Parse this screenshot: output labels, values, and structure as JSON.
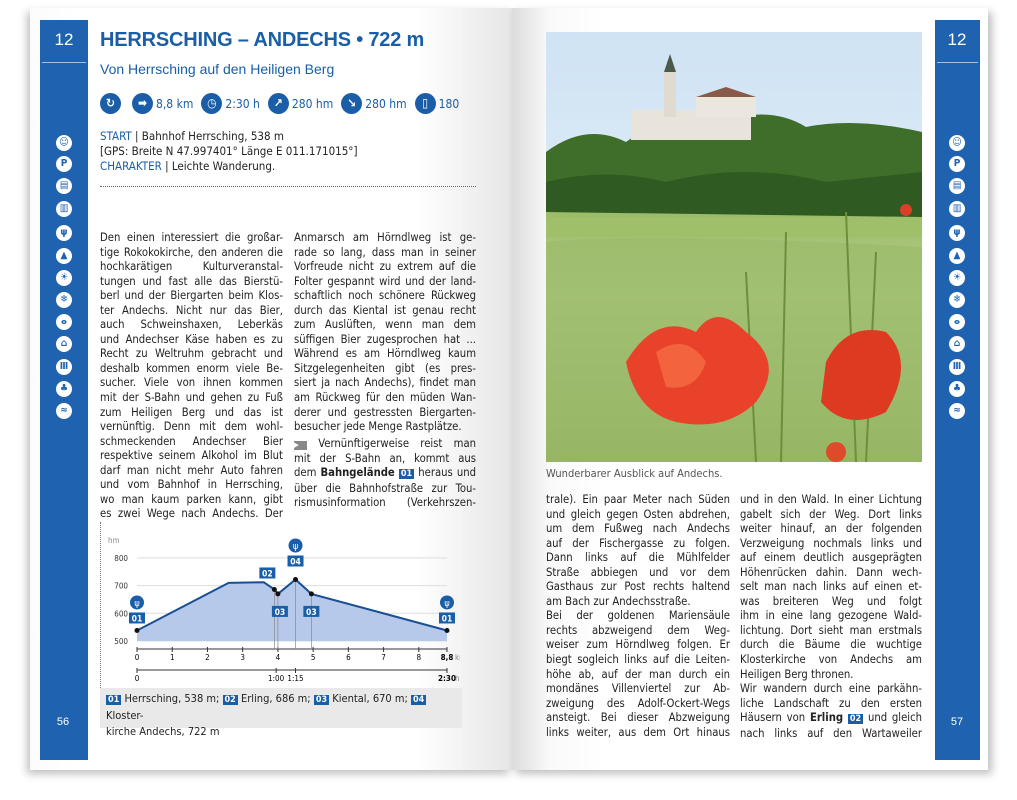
{
  "tour_number": "12",
  "left_page": {
    "page_number": "56",
    "title": "HERRSCHING – ANDECHS • 722 m",
    "subtitle": "Von Herrsching auf den Heiligen Berg",
    "stats": [
      {
        "icon": "loop-icon",
        "glyph": "↻",
        "value": ""
      },
      {
        "icon": "signpost-icon",
        "glyph": "➡",
        "value": "8,8 km"
      },
      {
        "icon": "clock-icon",
        "glyph": "◷",
        "value": "2:30 h"
      },
      {
        "icon": "ascent-icon",
        "glyph": "↗",
        "value": "280 hm"
      },
      {
        "icon": "descent-icon",
        "glyph": "↘",
        "value": "280 hm"
      },
      {
        "icon": "map-icon",
        "glyph": "▯",
        "value": "180"
      }
    ],
    "start_label": "START",
    "start_text": " | Bahnhof Herrsching, 538 m",
    "gps": "[GPS: Breite N 47.997401°  Länge E 011.171015°]",
    "character_label": "CHARAKTER",
    "character_text": " | Leichte Wanderung.",
    "col1": [
      "Den einen interessiert die großar-",
      "tige Rokokokirche, den anderen die",
      "hochkarätigen Kulturveranstal-",
      "tungen und fast alle das Bierstü-",
      "berl und der Biergarten beim Klos-",
      "ter Andechs. Nicht nur das Bier,",
      "auch Schweinshaxen, Leberkäs",
      "und Andechser Käse haben es zu",
      "Recht zu Weltruhm gebracht und",
      "deshalb kommen enorm viele Be-",
      "sucher. Viele von ihnen kommen",
      "mit der S-Bahn und gehen zu Fuß",
      "zum Heiligen Berg und das ist",
      "vernünftig. Denn mit dem wohl-",
      "schmeckenden Andechser Bier",
      "respektive seinem Alkohol im Blut",
      "darf man nicht mehr Auto fahren",
      "und vom Bahnhof in Herrsching,",
      "wo man kaum parken kann, gibt",
      "es zwei Wege nach Andechs. Der"
    ],
    "col2": [
      "Anmarsch am Hörndlweg ist ge-",
      "rade so lang, dass man in seiner",
      "Vorfreude nicht zu extrem auf die",
      "Folter gespannt wird und der land-",
      "schaftlich noch schönere Rückweg",
      "durch das Kiental ist genau recht",
      "zum Auslüften, wenn man dem",
      "süffigen Bier zugesprochen hat ...",
      "Während es am Hörndlweg kaum",
      "Sitzgelegenheiten gibt (es pres-",
      "siert ja nach Andechs), findet man",
      "am Rückweg für den müden Wan-",
      "derer und gestressten Biergarten-",
      "besucher jede Menge Rastplätze."
    ],
    "col2b": {
      "l1": "Vernünftigerweise reist man",
      "l2": "mit der S-Bahn an, kommt aus",
      "l3a": "dem ",
      "l3b": "Bahngelände",
      "l3badge": "01",
      "l3c": " heraus und",
      "l4": "über die Bahnhofstraße zur Tou-",
      "l5": "rismusinformation (Verkehrszen-"
    },
    "legend": [
      {
        "badge": "01",
        "text": "Herrsching, 538 m;"
      },
      {
        "badge": "02",
        "text": "Erling, 686 m;"
      },
      {
        "badge": "03",
        "text": "Kiental, 670 m;"
      },
      {
        "badge": "04",
        "text": "Kloster-"
      }
    ],
    "legend_line2": "kirche Andechs, 722 m"
  },
  "sidebar_icons": [
    "child-icon",
    "parking-icon",
    "bus-icon",
    "train-icon",
    "restaurant-icon",
    "mountain-hut-icon",
    "sun-icon",
    "snowflake-icon",
    "bicycle-icon",
    "hut-icon",
    "museum-icon",
    "tree-icon",
    "swimming-icon"
  ],
  "sidebar_glyphs": [
    "☺",
    "P",
    "▤",
    "▥",
    "ψ",
    "▲",
    "☀",
    "❄",
    "ⴰ",
    "⌂",
    "Ⅲ",
    "♣",
    "≈"
  ],
  "chart_data": {
    "type": "area",
    "ylabel": "hm",
    "xunit": "km",
    "tunit": "h",
    "ylim": [
      500,
      800
    ],
    "yticks": [
      500,
      600,
      700,
      800
    ],
    "xlim": [
      0,
      8.8
    ],
    "xticks": [
      "0",
      "1",
      "2",
      "3",
      "4",
      "5",
      "6",
      "7",
      "8",
      "8,8"
    ],
    "x": [
      0,
      2.6,
      3.6,
      3.9,
      4.0,
      4.5,
      4.95,
      8.8
    ],
    "y": [
      538,
      710,
      712,
      686,
      670,
      722,
      670,
      538
    ],
    "time_ticks": [
      {
        "km": 0,
        "label": "0"
      },
      {
        "km": 3.95,
        "label": "1:00"
      },
      {
        "km": 4.5,
        "label": "1:15"
      },
      {
        "km": 8.8,
        "label": "2:30"
      }
    ],
    "waypoints": [
      {
        "km": 0,
        "alt": 538,
        "badge": "01",
        "restaurant": true
      },
      {
        "km": 3.9,
        "alt": 686,
        "badge": "02"
      },
      {
        "km": 4.0,
        "alt": 670,
        "badge": "03"
      },
      {
        "km": 4.5,
        "alt": 722,
        "badge": "04",
        "restaurant": true
      },
      {
        "km": 4.95,
        "alt": 670,
        "badge": "03"
      },
      {
        "km": 8.8,
        "alt": 538,
        "badge": "01",
        "restaurant": true
      }
    ],
    "grid": true,
    "colors": {
      "line": "#1a4f92",
      "fill": "#b6c9ea"
    }
  },
  "right_page": {
    "page_number": "57",
    "caption": "Wunderbarer Ausblick auf Andechs.",
    "col1": [
      "trale). Ein paar Meter nach Süden",
      "und gleich gegen Osten abdrehen,",
      "um dem Fußweg nach Andechs",
      "auf der Fischergasse zu folgen.",
      "Dann links auf die Mühlfelder",
      "Straße abbiegen und vor dem",
      "Gasthaus zur Post rechts haltend",
      "am Bach zur Andechsstraße.",
      "Bei der goldenen Mariensäule",
      "rechts abzweigend dem Weg-",
      "weiser zum Hörndlweg folgen. Er",
      "biegt sogleich links auf die Leiten-",
      "höhe ab, auf der man durch ein",
      "mondänes Villenviertel zur Ab-",
      "zweigung des Adolf-Ockert-Wegs",
      "ansteigt. Bei dieser Abzweigung",
      "links weiter, aus dem Ort hinaus"
    ],
    "col2": [
      "und in den Wald. In einer Lichtung",
      "gabelt sich der Weg. Dort links",
      "weiter hinauf, an der folgenden",
      "Verzweigung nochmals links und",
      "auf einem deutlich ausgeprägten",
      "Höhenrücken dahin. Dann wech-",
      "selt man nach links auf einen et-",
      "was breiteren Weg und folgt",
      "ihm in eine lang gezogene Wald-",
      "lichtung. Dort sieht man erstmals",
      "durch die Bäume die wuchtige",
      "Klosterkirche von Andechs am",
      "Heiligen Berg thronen.",
      "Wir wandern durch eine parkähn-",
      "liche Landschaft zu den ersten"
    ],
    "col2_l16a": "Häusern von ",
    "col2_l16b": "Erling",
    "col2_l16badge": "02",
    "col2_l16c": " und gleich",
    "col2_l17": "nach links auf den Wartaweiler"
  },
  "colors": {
    "brand": "#1f63b0"
  }
}
